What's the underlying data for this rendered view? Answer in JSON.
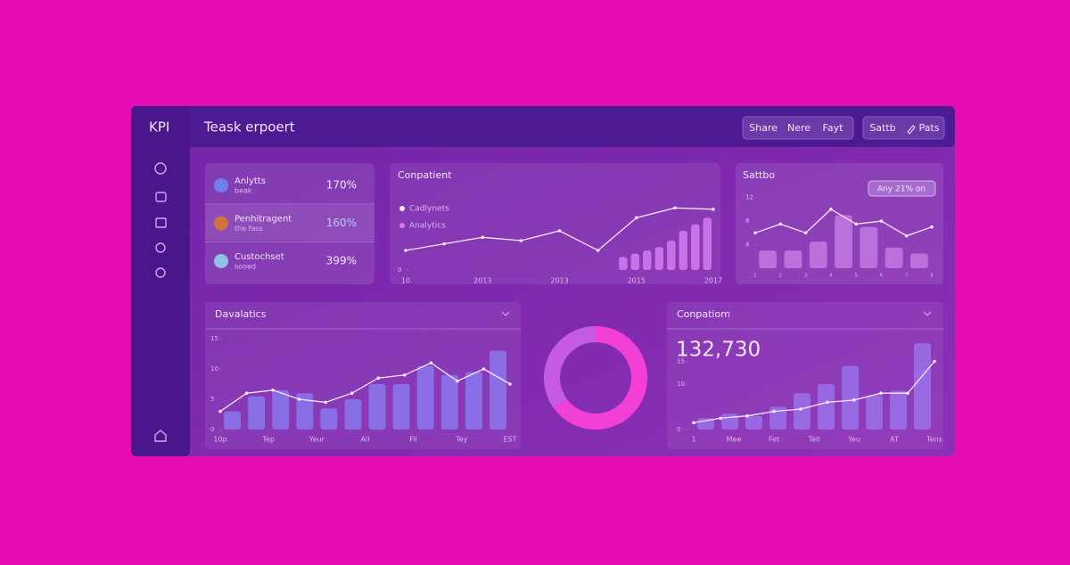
{
  "sidebar": {
    "logo": "KPI"
  },
  "header": {
    "title": "Teask erpoert",
    "buttons": [
      "Share",
      "Nere",
      "Fayt"
    ],
    "actions": [
      "Sattb",
      "Pats"
    ]
  },
  "kpis": [
    {
      "label": "Anlytts",
      "sub": "beak",
      "value": "170%"
    },
    {
      "label": "Penhitragent",
      "sub": "the fass",
      "value": "160%"
    },
    {
      "label": "Custochset",
      "sub": "sooed",
      "value": "399%"
    }
  ],
  "trend": {
    "type": "line-bar",
    "title": "Conpatient",
    "legend": [
      "Cadlynets",
      "Analytics"
    ],
    "xlabels": [
      "10",
      "2013",
      "2013",
      "2015",
      "2017"
    ],
    "line": [
      3,
      4,
      5,
      4.5,
      6,
      3,
      8,
      9.5,
      9.3
    ],
    "bars": [
      2,
      2.5,
      3,
      3.5,
      4.5,
      6,
      7,
      8
    ],
    "ylim": [
      0,
      12
    ],
    "yticks": [
      0
    ],
    "bar_color": "#d37cf0",
    "line_color": "#f4e6ff"
  },
  "side": {
    "type": "line-bar",
    "title": "Sattbo",
    "pill": "Any 21% on",
    "xlabels": [
      "1",
      "2",
      "3",
      "4",
      "5",
      "6",
      "7",
      "8"
    ],
    "line": [
      6,
      7.5,
      6,
      10,
      7.5,
      8,
      5.5,
      7
    ],
    "bars": [
      3,
      3,
      4.5,
      9,
      7,
      3.5,
      2.5
    ],
    "ylim": [
      0,
      13
    ],
    "yticks": [
      4,
      8,
      12
    ],
    "bar_color": "#c27ae0",
    "line_color": "#f4e6ff"
  },
  "analytics": {
    "type": "line-bar",
    "title": "Davalatics",
    "xlabels": [
      "10p",
      "Tep",
      "Yeur",
      "All",
      "Fil",
      "Tey",
      "EST"
    ],
    "line": [
      3,
      6,
      6.5,
      5,
      4.5,
      6,
      8.5,
      9,
      11,
      8,
      10,
      7.5
    ],
    "bars": [
      3,
      5.5,
      6.5,
      6,
      3.5,
      5,
      7.5,
      7.5,
      10.5,
      9,
      9.5,
      13
    ],
    "ylim": [
      0,
      15
    ],
    "yticks": [
      0,
      5,
      10,
      15
    ],
    "bar_color": "#8b78ee",
    "line_color": "#f4e6ff"
  },
  "donut": {
    "type": "donut",
    "values": [
      65,
      35
    ],
    "colors": [
      "#f23fd6",
      "#c45ae6"
    ]
  },
  "comparison": {
    "type": "line-bar",
    "title": "Conpatiom",
    "big_number": "132,730",
    "xlabels": [
      "1",
      "Mee",
      "Fet",
      "Tell",
      "Yeu",
      "AT",
      "Tens"
    ],
    "line": [
      1.5,
      2.5,
      3,
      4,
      4.5,
      6,
      6.5,
      8,
      8,
      15
    ],
    "bars": [
      2.5,
      3.5,
      3,
      5,
      8,
      10,
      14,
      7.5,
      8.5,
      19
    ],
    "ylim": [
      0,
      20
    ],
    "yticks": [
      0,
      10,
      15
    ],
    "bar_color": "#9a72ea",
    "line_color": "#f4e6ff"
  }
}
